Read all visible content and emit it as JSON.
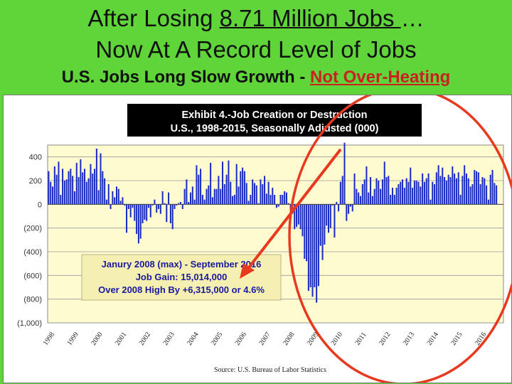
{
  "slide": {
    "title_line1_pre": "After Losing ",
    "title_line1_under": "8.71 Million Jobs ",
    "title_line1_post": "…",
    "title_line2": "Now At A Record Level of Jobs",
    "title_line3_pre": "U.S. Jobs Long Slow Growth - ",
    "title_line3_red": "Not Over-Heating"
  },
  "colors": {
    "slide_bg": "#5fd53a",
    "plot_bg": "#fffbd0",
    "bar": "#1a2bc4",
    "annotation_box": "#f6efb2",
    "annotation_text": "#1a1aa0",
    "highlight": "#e8391f"
  },
  "chart_data": {
    "type": "bar",
    "title_line1": "Exhibit 4.-Job Creation or Destruction",
    "title_line2": "U.S., 1998-2015, Seasonally Adjusted (000)",
    "xlabel": "",
    "ylabel": "",
    "ylim": [
      -1000,
      500
    ],
    "y_ticks": [
      400,
      200,
      0,
      -200,
      -400,
      -600,
      -800,
      -1000
    ],
    "y_tick_labels": [
      "400",
      "200",
      "0",
      "(200)",
      "(400)",
      "(600)",
      "(800)",
      "(1,000)"
    ],
    "x_tick_labels": [
      "1998",
      "1999",
      "2000",
      "2001",
      "2002",
      "2003",
      "2004",
      "2005",
      "2006",
      "2007",
      "2008",
      "2009",
      "2010",
      "2011",
      "2012",
      "2013",
      "2014",
      "2015",
      "2016"
    ],
    "grid": true,
    "annotation": {
      "line1": "Janury 2008 (max) - September 2016",
      "line2": "Job Gain:  15,014,000",
      "line3": "Over 2008 High By +6,315,000 or 4.6%"
    },
    "source": "Source:  U.S. Bureau of Labor Statistics",
    "values": [
      {
        "year": 1998,
        "monthly": [
          280,
          190,
          150,
          320,
          250,
          360,
          80,
          300,
          200,
          210,
          280,
          300
        ]
      },
      {
        "year": 1999,
        "monthly": [
          240,
          110,
          350,
          230,
          380,
          270,
          300,
          190,
          220,
          340,
          260,
          300
        ]
      },
      {
        "year": 2000,
        "monthly": [
          470,
          120,
          430,
          280,
          220,
          40,
          170,
          -40,
          110,
          60,
          150,
          130
        ]
      },
      {
        "year": 2001,
        "monthly": [
          30,
          60,
          -10,
          -240,
          -40,
          -110,
          -30,
          -140,
          -250,
          -330,
          -290,
          -160
        ]
      },
      {
        "year": 2002,
        "monthly": [
          -130,
          -140,
          -30,
          -110,
          -10,
          40,
          -70,
          -40,
          -80,
          110,
          10,
          -150
        ]
      },
      {
        "year": 2003,
        "monthly": [
          100,
          -160,
          -210,
          -40,
          -10,
          10,
          20,
          -40,
          130,
          210,
          20,
          100
        ]
      },
      {
        "year": 2004,
        "monthly": [
          150,
          40,
          330,
          250,
          300,
          80,
          40,
          130,
          160,
          350,
          60,
          130
        ]
      },
      {
        "year": 2005,
        "monthly": [
          130,
          240,
          130,
          360,
          170,
          250,
          370,
          190,
          70,
          80,
          340,
          150
        ]
      },
      {
        "year": 2006,
        "monthly": [
          280,
          310,
          280,
          180,
          30,
          80,
          210,
          180,
          160,
          10,
          210,
          170
        ]
      },
      {
        "year": 2007,
        "monthly": [
          240,
          90,
          190,
          80,
          140,
          80,
          -30,
          -20,
          80,
          80,
          110,
          100
        ]
      },
      {
        "year": 2008,
        "monthly": [
          10,
          -80,
          -80,
          -210,
          -190,
          -170,
          -210,
          -270,
          -460,
          -480,
          -730,
          -700
        ]
      },
      {
        "year": 2009,
        "monthly": [
          -780,
          -700,
          -830,
          -690,
          -350,
          -470,
          -340,
          -180,
          -240,
          -200,
          -10,
          -280
        ]
      },
      {
        "year": 2010,
        "monthly": [
          20,
          -60,
          190,
          240,
          520,
          -140,
          -80,
          -20,
          -60,
          260,
          130,
          100
        ]
      },
      {
        "year": 2011,
        "monthly": [
          70,
          170,
          210,
          320,
          100,
          230,
          70,
          130,
          220,
          200,
          130,
          210
        ]
      },
      {
        "year": 2012,
        "monthly": [
          360,
          230,
          240,
          80,
          140,
          80,
          140,
          170,
          190,
          210,
          140,
          220
        ]
      },
      {
        "year": 2013,
        "monthly": [
          190,
          310,
          140,
          200,
          200,
          190,
          150,
          260,
          190,
          220,
          260,
          40
        ]
      },
      {
        "year": 2014,
        "monthly": [
          190,
          170,
          270,
          330,
          240,
          310,
          230,
          200,
          250,
          230,
          320,
          260
        ]
      },
      {
        "year": 2015,
        "monthly": [
          220,
          270,
          80,
          240,
          330,
          260,
          220,
          150,
          170,
          290,
          280,
          270
        ]
      },
      {
        "year": 2016,
        "monthly": [
          170,
          230,
          220,
          160,
          40,
          250,
          290,
          180,
          160
        ]
      }
    ]
  }
}
